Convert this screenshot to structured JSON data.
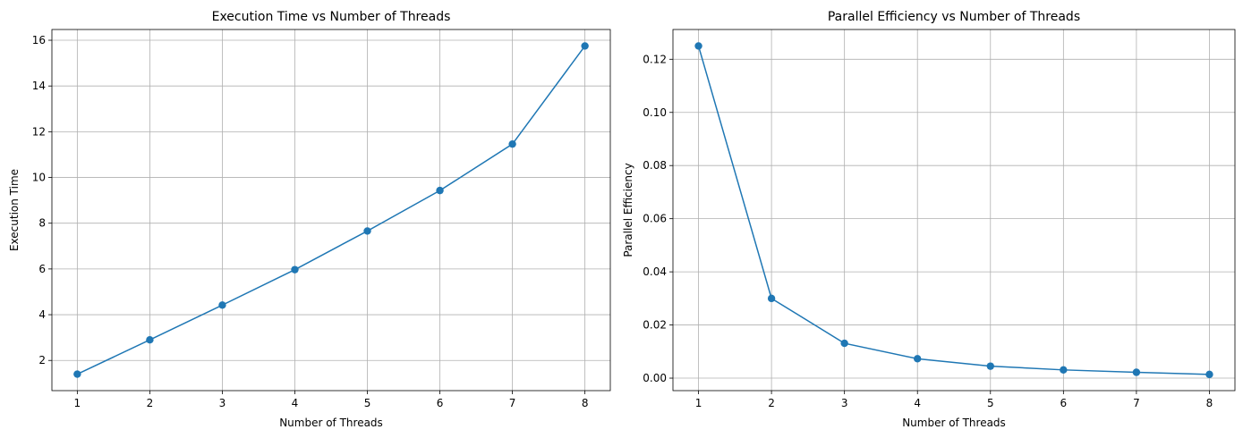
{
  "chart_data": [
    {
      "type": "line",
      "title": "Execution Time vs Number of Threads",
      "xlabel": "Number of Threads",
      "ylabel": "Execution Time",
      "x": [
        1,
        2,
        3,
        4,
        5,
        6,
        7,
        8
      ],
      "series": [
        {
          "values": [
            1.4,
            2.9,
            4.42,
            5.97,
            7.66,
            9.43,
            11.46,
            15.75
          ],
          "color": "#1f77b4",
          "marker": "circle"
        }
      ],
      "xticks": [
        "1",
        "2",
        "3",
        "4",
        "5",
        "6",
        "7",
        "8"
      ],
      "yticks": [
        "2",
        "4",
        "6",
        "8",
        "10",
        "12",
        "14",
        "16"
      ],
      "xlim": [
        0.65,
        8.35
      ],
      "ylim": [
        0.68,
        16.47
      ],
      "grid": true
    },
    {
      "type": "line",
      "title": "Parallel Efficiency vs Number of Threads",
      "xlabel": "Number of Threads",
      "ylabel": "Parallel Efficiency",
      "x": [
        1,
        2,
        3,
        4,
        5,
        6,
        7,
        8
      ],
      "series": [
        {
          "values": [
            0.125,
            0.03,
            0.0131,
            0.0073,
            0.0045,
            0.0031,
            0.0022,
            0.0014
          ],
          "color": "#1f77b4",
          "marker": "circle"
        }
      ],
      "xticks": [
        "1",
        "2",
        "3",
        "4",
        "5",
        "6",
        "7",
        "8"
      ],
      "yticks": [
        "0.00",
        "0.02",
        "0.04",
        "0.06",
        "0.08",
        "0.10",
        "0.12"
      ],
      "xlim": [
        0.65,
        8.35
      ],
      "ylim": [
        -0.0047,
        0.1312
      ],
      "grid": true
    }
  ]
}
